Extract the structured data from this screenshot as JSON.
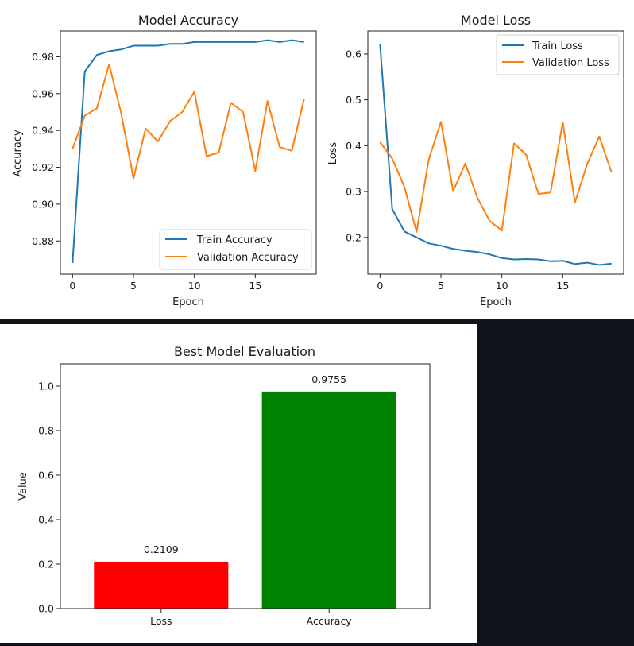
{
  "chart_data": [
    {
      "type": "line",
      "title": "Model Accuracy",
      "xlabel": "Epoch",
      "ylabel": "Accuracy",
      "xlim": [
        -1,
        20
      ],
      "ylim": [
        0.862,
        0.994
      ],
      "xticks": [
        0,
        5,
        10,
        15
      ],
      "yticks": [
        0.88,
        0.9,
        0.92,
        0.94,
        0.96,
        0.98
      ],
      "ytick_labels": [
        "0.88",
        "0.90",
        "0.92",
        "0.94",
        "0.96",
        "0.98"
      ],
      "legend_position": "lower-right",
      "x": [
        0,
        1,
        2,
        3,
        4,
        5,
        6,
        7,
        8,
        9,
        10,
        11,
        12,
        13,
        14,
        15,
        16,
        17,
        18,
        19
      ],
      "series": [
        {
          "name": "Train Accuracy",
          "color": "#1f77b4",
          "values": [
            0.868,
            0.972,
            0.981,
            0.983,
            0.984,
            0.986,
            0.986,
            0.986,
            0.987,
            0.987,
            0.988,
            0.988,
            0.988,
            0.988,
            0.988,
            0.988,
            0.989,
            0.988,
            0.989,
            0.988
          ]
        },
        {
          "name": "Validation Accuracy",
          "color": "#ff7f0e",
          "values": [
            0.93,
            0.948,
            0.952,
            0.976,
            0.949,
            0.914,
            0.941,
            0.934,
            0.945,
            0.95,
            0.961,
            0.926,
            0.928,
            0.955,
            0.95,
            0.918,
            0.956,
            0.931,
            0.929,
            0.957
          ]
        }
      ]
    },
    {
      "type": "line",
      "title": "Model Loss",
      "xlabel": "Epoch",
      "ylabel": "Loss",
      "xlim": [
        -1,
        20
      ],
      "ylim": [
        0.12,
        0.65
      ],
      "xticks": [
        0,
        5,
        10,
        15
      ],
      "yticks": [
        0.2,
        0.3,
        0.4,
        0.5,
        0.6
      ],
      "ytick_labels": [
        "0.2",
        "0.3",
        "0.4",
        "0.5",
        "0.6"
      ],
      "legend_position": "upper-right",
      "x": [
        0,
        1,
        2,
        3,
        4,
        5,
        6,
        7,
        8,
        9,
        10,
        11,
        12,
        13,
        14,
        15,
        16,
        17,
        18,
        19
      ],
      "series": [
        {
          "name": "Train Loss",
          "color": "#1f77b4",
          "values": [
            0.622,
            0.262,
            0.213,
            0.2,
            0.187,
            0.182,
            0.175,
            0.171,
            0.168,
            0.163,
            0.155,
            0.152,
            0.153,
            0.152,
            0.148,
            0.149,
            0.142,
            0.145,
            0.14,
            0.143
          ]
        },
        {
          "name": "Validation Loss",
          "color": "#ff7f0e",
          "values": [
            0.408,
            0.372,
            0.31,
            0.212,
            0.37,
            0.452,
            0.301,
            0.361,
            0.286,
            0.236,
            0.215,
            0.405,
            0.38,
            0.295,
            0.298,
            0.451,
            0.276,
            0.36,
            0.42,
            0.342
          ]
        }
      ]
    },
    {
      "type": "bar",
      "title": "Best Model Evaluation",
      "xlabel": "",
      "ylabel": "Value",
      "ylim": [
        0,
        1.1
      ],
      "yticks": [
        0.0,
        0.2,
        0.4,
        0.6,
        0.8,
        1.0
      ],
      "ytick_labels": [
        "0.0",
        "0.2",
        "0.4",
        "0.6",
        "0.8",
        "1.0"
      ],
      "categories": [
        "Loss",
        "Accuracy"
      ],
      "values": [
        0.2109,
        0.9755
      ],
      "value_labels": [
        "0.2109",
        "0.9755"
      ],
      "colors": [
        "#ff0000",
        "#008000"
      ]
    }
  ]
}
